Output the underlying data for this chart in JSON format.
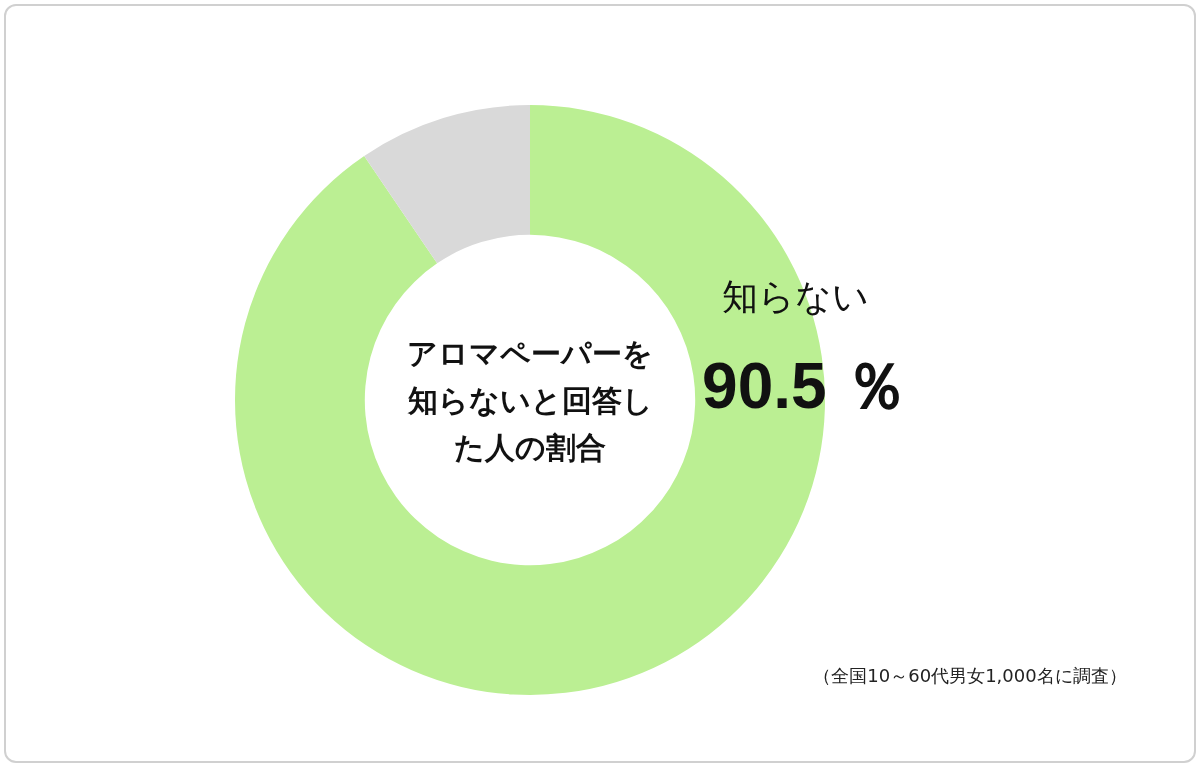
{
  "chart_data": {
    "type": "donut",
    "title": "アロマペーパーを知らないと回答した人の割合",
    "categories": [
      "知らない",
      null
    ],
    "values": [
      90.5,
      9.5
    ],
    "colors": [
      "#bbef93",
      "#d9d9d9"
    ],
    "value_labels": [
      "90.5 ％",
      null
    ],
    "legend": false,
    "annotations": [
      "（全国10～60代男女1,000名に調査）"
    ]
  }
}
